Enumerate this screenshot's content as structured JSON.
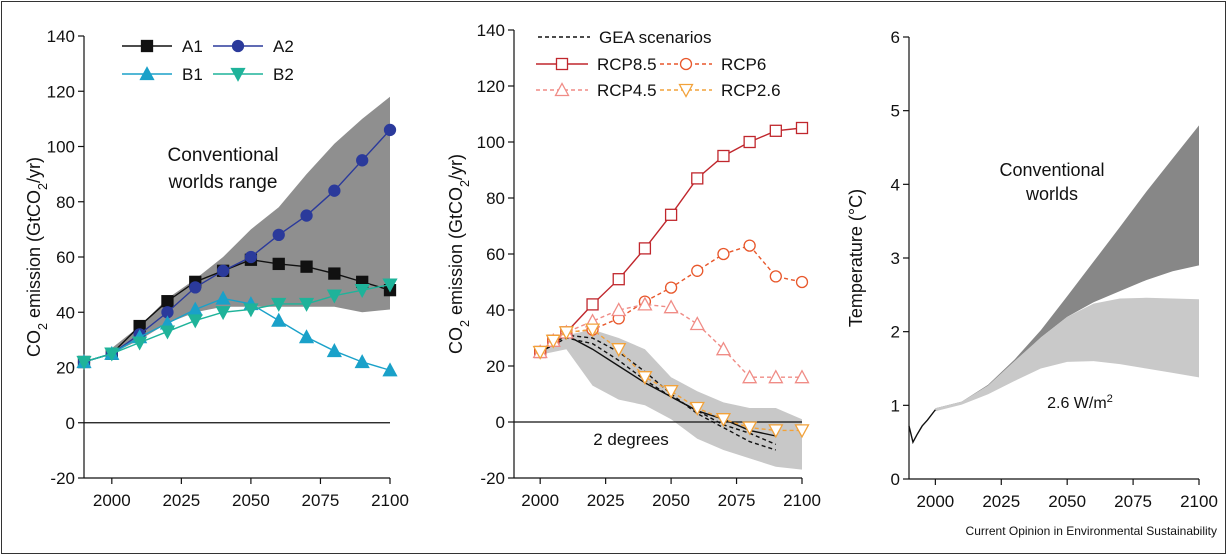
{
  "credit": "Current Opinion in Environmental Sustainability",
  "chart_data": [
    {
      "type": "line",
      "ylabel": "CO<sub>2</sub> emission (GtCO<sub>2</sub>/yr)",
      "ylim": [
        -20,
        140
      ],
      "yticks": [
        -20,
        0,
        20,
        40,
        60,
        80,
        100,
        120,
        140
      ],
      "xlim": [
        1990,
        2100
      ],
      "xticks": [
        2000,
        2025,
        2050,
        2075,
        2100
      ],
      "annotations": [
        {
          "text": "Conventional worlds range"
        }
      ],
      "band": {
        "name": "Conventional worlds range",
        "color": "#8f8f8f",
        "x": [
          2000,
          2010,
          2020,
          2030,
          2040,
          2050,
          2060,
          2070,
          2080,
          2090,
          2100
        ],
        "upper": [
          27,
          35,
          45,
          52,
          60,
          70,
          78,
          90,
          101,
          110,
          118
        ],
        "lower": [
          25,
          30,
          36,
          40,
          42,
          42,
          42,
          42,
          42,
          40,
          41
        ]
      },
      "series": [
        {
          "name": "A1",
          "color": "#111111",
          "marker": "square",
          "x": [
            1990,
            2000,
            2010,
            2020,
            2030,
            2040,
            2050,
            2060,
            2070,
            2080,
            2090,
            2100
          ],
          "y": [
            22,
            25,
            35,
            44,
            51,
            55,
            59,
            57.5,
            56.5,
            54,
            51,
            48
          ]
        },
        {
          "name": "A2",
          "color": "#2b3a9b",
          "marker": "circle",
          "x": [
            1990,
            2000,
            2010,
            2020,
            2030,
            2040,
            2050,
            2060,
            2070,
            2080,
            2090,
            2100
          ],
          "y": [
            22,
            25,
            32,
            40,
            49,
            55,
            60,
            68,
            75,
            84,
            95,
            106
          ]
        },
        {
          "name": "B1",
          "color": "#1aa1c9",
          "marker": "triangle-up",
          "x": [
            1990,
            2000,
            2010,
            2020,
            2030,
            2040,
            2050,
            2060,
            2070,
            2080,
            2090,
            2100
          ],
          "y": [
            22,
            25,
            31,
            36,
            41,
            45,
            43,
            37,
            31,
            26,
            22,
            19
          ]
        },
        {
          "name": "B2",
          "color": "#1fb39a",
          "marker": "triangle-down",
          "x": [
            1990,
            2000,
            2010,
            2020,
            2030,
            2040,
            2050,
            2060,
            2070,
            2080,
            2090,
            2100
          ],
          "y": [
            22,
            25,
            29,
            33,
            37,
            40,
            41,
            43,
            43,
            46,
            48,
            50
          ]
        }
      ]
    },
    {
      "type": "line",
      "ylabel": "CO<sub>2</sub> emission (GtCO<sub>2</sub>/yr)",
      "ylim": [
        -20,
        140
      ],
      "yticks": [
        -20,
        0,
        20,
        40,
        60,
        80,
        100,
        120,
        140
      ],
      "xlim": [
        1990,
        2100
      ],
      "xticks": [
        2000,
        2025,
        2050,
        2075,
        2100
      ],
      "annotations": [
        {
          "text": "2 degrees"
        }
      ],
      "band": {
        "name": "2 degrees",
        "color": "#c8c8c8",
        "x": [
          2000,
          2010,
          2020,
          2030,
          2040,
          2050,
          2060,
          2070,
          2080,
          2090,
          2100
        ],
        "upper": [
          26,
          31,
          33,
          30,
          26,
          16,
          11,
          7,
          5,
          5,
          1
        ],
        "lower": [
          24,
          26,
          13,
          8,
          6,
          1,
          -6,
          -10,
          -13,
          -16,
          -17
        ]
      },
      "series": [
        {
          "name": "GEA scenarios",
          "color": "#111111",
          "dash": "4,3",
          "marker": "none",
          "x": [
            2000,
            2010,
            2020,
            2030,
            2040,
            2050,
            2060,
            2070,
            2080,
            2090
          ],
          "y": [
            25,
            30,
            28,
            22,
            15,
            9,
            4,
            -1,
            -4,
            -8
          ]
        },
        {
          "name": "",
          "color": "#111111",
          "dash": "4,3",
          "marker": "none",
          "x": [
            2000,
            2010,
            2020,
            2030,
            2040,
            2050,
            2060,
            2070,
            2080,
            2090
          ],
          "y": [
            25,
            31,
            30,
            25,
            18,
            10,
            3,
            -2,
            -7,
            -10
          ]
        },
        {
          "name": "",
          "color": "#111111",
          "dash": "",
          "marker": "none",
          "x": [
            2000,
            2010,
            2020,
            2030,
            2040,
            2050,
            2060,
            2070,
            2080,
            2090
          ],
          "y": [
            25,
            31,
            26,
            20,
            14,
            9,
            4,
            1,
            -3,
            -5
          ]
        },
        {
          "name": "RCP8.5",
          "color": "#c0272d",
          "dash": "",
          "marker": "square-open",
          "x": [
            2000,
            2005,
            2010,
            2020,
            2030,
            2040,
            2050,
            2060,
            2070,
            2080,
            2090,
            2100
          ],
          "y": [
            25,
            29,
            32,
            42,
            51,
            62,
            74,
            87,
            95,
            100,
            104,
            105
          ]
        },
        {
          "name": "RCP6",
          "color": "#e8572b",
          "dash": "4,3",
          "marker": "circle-open",
          "x": [
            2000,
            2005,
            2010,
            2020,
            2030,
            2040,
            2050,
            2060,
            2070,
            2080,
            2090,
            2100
          ],
          "y": [
            25,
            29,
            32,
            33,
            37,
            43,
            48,
            54,
            60,
            63,
            52,
            50
          ]
        },
        {
          "name": "RCP4.5",
          "color": "#f08c86",
          "dash": "4,3",
          "marker": "triangle-up-open",
          "x": [
            2000,
            2005,
            2010,
            2020,
            2030,
            2040,
            2050,
            2060,
            2070,
            2080,
            2090,
            2100
          ],
          "y": [
            25,
            29,
            32,
            36,
            40,
            42,
            41,
            35,
            26,
            16,
            16,
            16
          ]
        },
        {
          "name": "RCP2.6",
          "color": "#f2a23a",
          "dash": "4,3",
          "marker": "triangle-down-open",
          "x": [
            2000,
            2005,
            2010,
            2020,
            2030,
            2040,
            2050,
            2060,
            2070,
            2080,
            2090,
            2100
          ],
          "y": [
            25,
            29,
            32,
            33,
            26,
            16,
            11,
            5,
            1,
            -2,
            -3,
            -3
          ]
        }
      ]
    },
    {
      "type": "area",
      "ylabel": "Temperature (°C)",
      "ylim": [
        0,
        6
      ],
      "yticks": [
        0,
        1,
        2,
        3,
        4,
        5,
        6
      ],
      "xlim": [
        1990,
        2100
      ],
      "xticks": [
        2000,
        2025,
        2050,
        2075,
        2100
      ],
      "annotations": [
        {
          "text": "Conventional worlds"
        },
        {
          "text": "2.6 W/m<sup>2</sup>"
        }
      ],
      "bands": [
        {
          "name": "Conventional worlds",
          "color": "#878787",
          "x": [
            2000,
            2010,
            2020,
            2030,
            2040,
            2050,
            2060,
            2070,
            2080,
            2090,
            2100
          ],
          "upper": [
            0.96,
            1.05,
            1.28,
            1.62,
            2.02,
            2.48,
            2.95,
            3.42,
            3.9,
            4.35,
            4.8
          ],
          "lower": [
            0.92,
            1.03,
            1.25,
            1.58,
            1.92,
            2.2,
            2.4,
            2.55,
            2.7,
            2.82,
            2.9
          ]
        },
        {
          "name": "2.6 W/m2",
          "color": "#c9c9c9",
          "x": [
            2000,
            2010,
            2020,
            2030,
            2040,
            2050,
            2060,
            2070,
            2080,
            2090,
            2100
          ],
          "upper": [
            0.96,
            1.05,
            1.27,
            1.6,
            1.92,
            2.2,
            2.38,
            2.45,
            2.46,
            2.45,
            2.44
          ],
          "lower": [
            0.92,
            1.01,
            1.15,
            1.33,
            1.5,
            1.59,
            1.6,
            1.56,
            1.5,
            1.44,
            1.38
          ]
        }
      ],
      "series": [
        {
          "name": "",
          "color": "#111111",
          "dash": "",
          "marker": "none",
          "x": [
            1990,
            1991.5,
            1993,
            1995,
            1997,
            2000
          ],
          "y": [
            0.72,
            0.5,
            0.6,
            0.72,
            0.8,
            0.94
          ]
        }
      ]
    }
  ]
}
